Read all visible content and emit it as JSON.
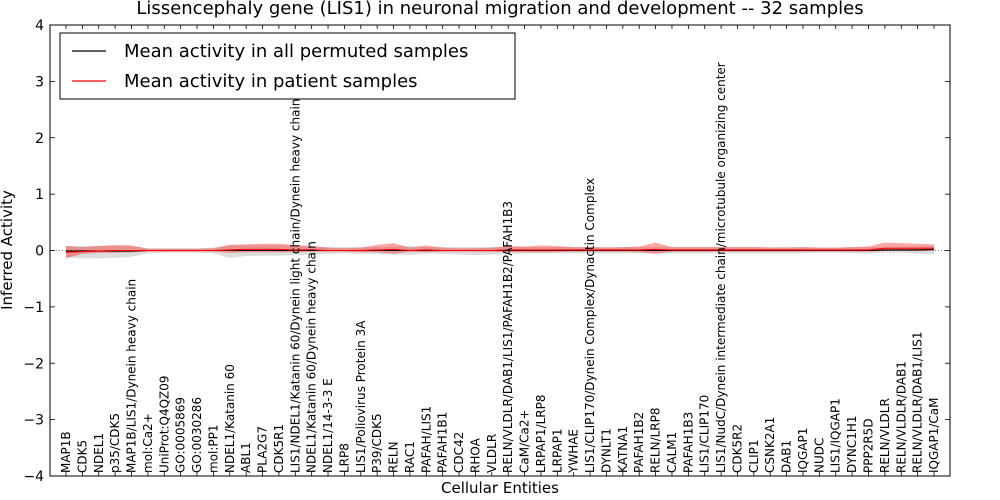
{
  "chart_data": {
    "type": "line",
    "title": "Lissencephaly gene (LIS1) in neuronal migration and development -- 32 samples",
    "xlabel": "Cellular Entities",
    "ylabel": "Inferred Activity",
    "ylim": [
      -4,
      4
    ],
    "yticks": [
      "−4",
      "−3",
      "−2",
      "−1",
      "0",
      "1",
      "2",
      "3",
      "4"
    ],
    "grid": false,
    "legend_position": "top-left",
    "categories": [
      "MAP1B",
      "CDK5",
      "NDEL1",
      "p35/CDK5",
      "MAP1B/LIS1/Dynein heavy chain",
      "mol:Ca2+",
      "UniProt:Q4QZ09",
      "GO:0005869",
      "GO:0030286",
      "mol:PP1",
      "NDEL1/Katanin 60",
      "ABL1",
      "PLA2G7",
      "CDK5R1",
      "LIS1/NDEL1/Katanin 60/Dynein light chain/Dynein heavy chain",
      "NDEL1/Katanin 60/Dynein heavy chain",
      "NDEL1/14-3-3 E",
      "LRP8",
      "LIS1/Poliovirus Protein 3A",
      "P39/CDK5",
      "RELN",
      "RAC1",
      "PAFAH/LIS1",
      "PAFAH1B1",
      "CDC42",
      "RHOA",
      "VLDLR",
      "RELN/VLDLR/DAB1/LIS1/PAFAH1B2/PAFAH1B3",
      "CaM/Ca2+",
      "LRPAP1/LRP8",
      "LRPAP1",
      "YWHAE",
      "LIS1/CLIP170/Dynein Complex/Dynactin Complex",
      "DYNLT1",
      "KATNA1",
      "PAFAH1B2",
      "RELN/LRP8",
      "CALM1",
      "PAFAH1B3",
      "LIS1/CLIP170",
      "LIS1/NudC/Dynein intermediate chain/microtubule organizing center",
      "CDK5R2",
      "CLIP1",
      "CSNK2A1",
      "DAB1",
      "IQGAP1",
      "NUDC",
      "LIS1/IQGAP1",
      "DYNC1H1",
      "PPP2R5D",
      "RELN/VLDLR",
      "RELN/VLDLR/DAB1",
      "RELN/VLDLR/DAB1/LIS1",
      "IQGAP1/CaM"
    ],
    "series": [
      {
        "name": "Mean activity in all permuted samples",
        "color": "#000000",
        "values": [
          -0.01,
          -0.01,
          -0.01,
          -0.01,
          -0.01,
          0.0,
          0.0,
          0.0,
          0.0,
          0.0,
          0.0,
          0.0,
          0.0,
          0.0,
          0.0,
          0.0,
          0.0,
          0.0,
          0.0,
          0.0,
          0.0,
          0.0,
          0.0,
          0.0,
          0.0,
          0.0,
          0.0,
          0.0,
          0.0,
          0.0,
          0.0,
          0.0,
          0.0,
          0.0,
          0.0,
          0.0,
          0.0,
          0.0,
          0.0,
          0.0,
          0.0,
          0.0,
          0.0,
          0.0,
          0.0,
          0.0,
          0.0,
          0.0,
          0.0,
          0.0,
          0.01,
          0.01,
          0.01,
          0.02
        ],
        "band_low": [
          -0.12,
          -0.14,
          -0.14,
          -0.13,
          -0.11,
          -0.05,
          -0.04,
          -0.04,
          -0.04,
          -0.05,
          -0.13,
          -0.1,
          -0.09,
          -0.09,
          -0.08,
          -0.07,
          -0.06,
          -0.05,
          -0.06,
          -0.06,
          -0.07,
          -0.08,
          -0.05,
          -0.06,
          -0.07,
          -0.08,
          -0.07,
          -0.06,
          -0.05,
          -0.05,
          -0.05,
          -0.05,
          -0.05,
          -0.05,
          -0.05,
          -0.05,
          -0.05,
          -0.05,
          -0.05,
          -0.05,
          -0.05,
          -0.05,
          -0.05,
          -0.05,
          -0.05,
          -0.05,
          -0.04,
          -0.04,
          -0.05,
          -0.05,
          -0.04,
          -0.04,
          -0.06,
          -0.07
        ],
        "band_high": [
          0.08,
          0.08,
          0.08,
          0.08,
          0.07,
          0.04,
          0.04,
          0.04,
          0.04,
          0.05,
          0.09,
          0.09,
          0.09,
          0.09,
          0.08,
          0.07,
          0.06,
          0.06,
          0.06,
          0.06,
          0.07,
          0.08,
          0.06,
          0.06,
          0.06,
          0.06,
          0.06,
          0.06,
          0.06,
          0.06,
          0.06,
          0.06,
          0.06,
          0.06,
          0.06,
          0.06,
          0.06,
          0.06,
          0.06,
          0.06,
          0.06,
          0.06,
          0.06,
          0.06,
          0.06,
          0.06,
          0.05,
          0.05,
          0.06,
          0.06,
          0.06,
          0.06,
          0.07,
          0.08
        ]
      },
      {
        "name": "Mean activity in patient samples",
        "color": "#ff0000",
        "values": [
          -0.03,
          -0.02,
          -0.01,
          0.0,
          0.0,
          0.0,
          0.0,
          0.0,
          0.0,
          0.0,
          0.01,
          0.02,
          0.02,
          0.02,
          0.01,
          0.01,
          0.0,
          0.0,
          0.0,
          0.01,
          0.02,
          0.0,
          0.01,
          0.0,
          0.0,
          0.0,
          0.0,
          0.01,
          0.01,
          0.01,
          0.01,
          0.01,
          0.01,
          0.01,
          0.01,
          0.01,
          0.02,
          0.01,
          0.01,
          0.01,
          0.01,
          0.01,
          0.01,
          0.01,
          0.01,
          0.01,
          0.01,
          0.01,
          0.01,
          0.01,
          0.04,
          0.04,
          0.04,
          0.04
        ],
        "band_low": [
          -0.14,
          -0.06,
          -0.04,
          -0.04,
          -0.03,
          -0.02,
          -0.02,
          -0.02,
          -0.02,
          -0.02,
          -0.04,
          -0.03,
          -0.03,
          -0.03,
          -0.03,
          -0.02,
          -0.02,
          -0.02,
          -0.03,
          -0.03,
          -0.06,
          -0.02,
          -0.03,
          -0.02,
          -0.02,
          -0.02,
          -0.02,
          -0.03,
          -0.03,
          -0.03,
          -0.03,
          -0.02,
          -0.02,
          -0.02,
          -0.02,
          -0.03,
          -0.06,
          -0.02,
          -0.02,
          -0.02,
          -0.02,
          -0.02,
          -0.02,
          -0.02,
          -0.02,
          -0.02,
          -0.02,
          -0.02,
          -0.02,
          -0.02,
          -0.01,
          -0.01,
          -0.01,
          -0.01
        ],
        "band_high": [
          0.08,
          0.06,
          0.08,
          0.1,
          0.09,
          0.03,
          0.03,
          0.03,
          0.03,
          0.04,
          0.1,
          0.11,
          0.12,
          0.12,
          0.1,
          0.08,
          0.05,
          0.04,
          0.05,
          0.1,
          0.13,
          0.05,
          0.09,
          0.05,
          0.04,
          0.04,
          0.05,
          0.08,
          0.07,
          0.09,
          0.08,
          0.06,
          0.06,
          0.05,
          0.06,
          0.07,
          0.14,
          0.06,
          0.06,
          0.06,
          0.06,
          0.06,
          0.06,
          0.05,
          0.05,
          0.06,
          0.05,
          0.05,
          0.06,
          0.07,
          0.14,
          0.13,
          0.12,
          0.11
        ]
      }
    ]
  }
}
